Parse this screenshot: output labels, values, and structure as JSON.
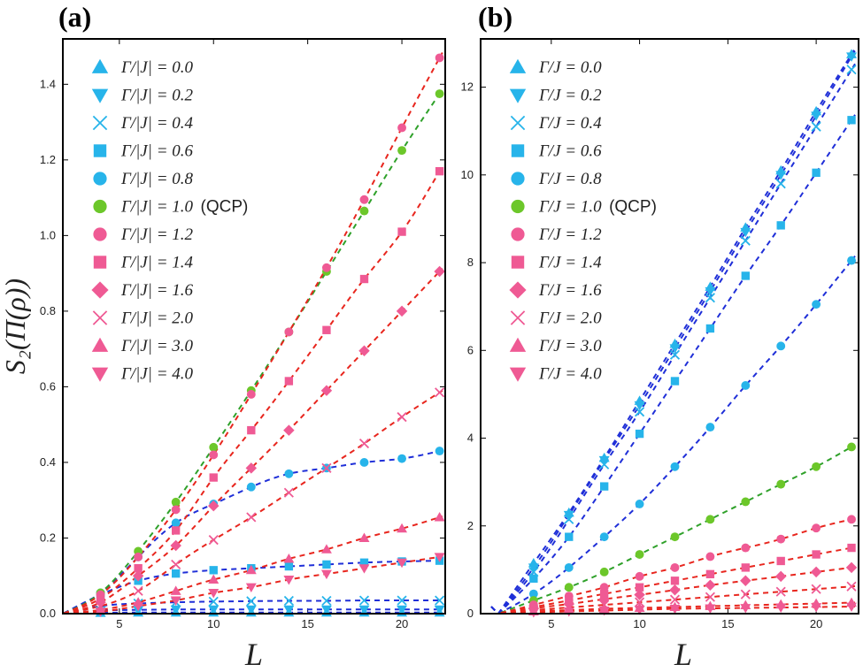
{
  "figure": {
    "ylabel": "S₂(Π(ρ))",
    "xlabel": "L"
  },
  "colors": {
    "cyan": "#27b4ea",
    "green": "#6cc72a",
    "pink": "#ef5a94",
    "blue_fit": "#1f2fd8",
    "green_fit": "#2fa12a",
    "red_fit": "#e8261e"
  },
  "chart_data": [
    {
      "panel": "(a)",
      "type": "scatter",
      "xlabel": "L",
      "ylabel": "S₂(Π(ρ))",
      "xlim": [
        2,
        22.3
      ],
      "ylim": [
        0,
        1.52
      ],
      "xticks": [
        5,
        10,
        15,
        20
      ],
      "yticks": [
        0.0,
        0.2,
        0.4,
        0.6,
        0.8,
        1.0,
        1.2,
        1.4
      ],
      "ytick_labels": [
        "0.0",
        "0.2",
        "0.4",
        "0.6",
        "0.8",
        "1.0",
        "1.2",
        "1.4"
      ],
      "x": [
        4,
        6,
        8,
        10,
        12,
        14,
        16,
        18,
        20,
        22
      ],
      "series": [
        {
          "legend": "Γ/|J| = 0.0",
          "marker": "triangle-up",
          "color": "cyan",
          "fit": "blue_fit",
          "values": [
            0.002,
            0.003,
            0.003,
            0.003,
            0.003,
            0.003,
            0.003,
            0.003,
            0.003,
            0.003
          ]
        },
        {
          "legend": "Γ/|J| = 0.2",
          "marker": "triangle-down",
          "color": "cyan",
          "fit": "blue_fit",
          "values": [
            0.008,
            0.01,
            0.011,
            0.011,
            0.011,
            0.011,
            0.011,
            0.011,
            0.011,
            0.011
          ]
        },
        {
          "legend": "Γ/|J| = 0.4",
          "marker": "cross",
          "color": "cyan",
          "fit": "blue_fit",
          "values": [
            0.02,
            0.027,
            0.03,
            0.032,
            0.033,
            0.034,
            0.034,
            0.035,
            0.035,
            0.035
          ]
        },
        {
          "legend": "Γ/|J| = 0.6",
          "marker": "square",
          "color": "cyan",
          "fit": "blue_fit",
          "values": [
            0.05,
            0.087,
            0.106,
            0.115,
            0.12,
            0.125,
            0.13,
            0.135,
            0.138,
            0.14
          ]
        },
        {
          "legend": "Γ/|J| = 0.8",
          "marker": "circle",
          "color": "cyan",
          "fit": "blue_fit",
          "values": [
            0.055,
            0.15,
            0.24,
            0.29,
            0.335,
            0.37,
            0.385,
            0.4,
            0.41,
            0.43
          ]
        },
        {
          "legend": "Γ/|J| = 1.0",
          "note": "(QCP)",
          "marker": "circle",
          "color": "green",
          "fit": "green_fit",
          "values": [
            0.055,
            0.165,
            0.295,
            0.44,
            0.59,
            0.745,
            0.905,
            1.065,
            1.225,
            1.375
          ]
        },
        {
          "legend": "Γ/|J| = 1.2",
          "marker": "circle",
          "color": "pink",
          "fit": "red_fit",
          "values": [
            0.05,
            0.15,
            0.275,
            0.42,
            0.58,
            0.745,
            0.915,
            1.095,
            1.285,
            1.47
          ]
        },
        {
          "legend": "Γ/|J| = 1.4",
          "marker": "square",
          "color": "pink",
          "fit": "red_fit",
          "values": [
            0.04,
            0.12,
            0.22,
            0.36,
            0.485,
            0.615,
            0.75,
            0.885,
            1.01,
            1.17
          ]
        },
        {
          "legend": "Γ/|J| = 1.6",
          "marker": "diamond",
          "color": "pink",
          "fit": "red_fit",
          "values": [
            0.03,
            0.1,
            0.18,
            0.285,
            0.385,
            0.485,
            0.59,
            0.695,
            0.8,
            0.905
          ]
        },
        {
          "legend": "Γ/|J| = 2.0",
          "marker": "cross",
          "color": "pink",
          "fit": "red_fit",
          "values": [
            0.02,
            0.06,
            0.13,
            0.195,
            0.255,
            0.32,
            0.385,
            0.45,
            0.52,
            0.585
          ]
        },
        {
          "legend": "Γ/|J| = 3.0",
          "marker": "triangle-up",
          "color": "pink",
          "fit": "red_fit",
          "values": [
            0.01,
            0.03,
            0.06,
            0.09,
            0.115,
            0.145,
            0.17,
            0.2,
            0.225,
            0.255
          ]
        },
        {
          "legend": "Γ/|J| = 4.0",
          "marker": "triangle-down",
          "color": "pink",
          "fit": "red_fit",
          "values": [
            0.005,
            0.02,
            0.035,
            0.055,
            0.07,
            0.09,
            0.105,
            0.12,
            0.135,
            0.15
          ]
        }
      ]
    },
    {
      "panel": "(b)",
      "type": "scatter",
      "xlabel": "L",
      "ylabel": "",
      "xlim": [
        1,
        22.4
      ],
      "ylim": [
        0,
        13.1
      ],
      "xticks": [
        5,
        10,
        15,
        20
      ],
      "yticks": [
        0,
        2,
        4,
        6,
        8,
        10,
        12
      ],
      "ytick_labels": [
        "0",
        "2",
        "4",
        "6",
        "8",
        "10",
        "12"
      ],
      "x": [
        4,
        6,
        8,
        10,
        12,
        14,
        16,
        18,
        20,
        22
      ],
      "series": [
        {
          "legend": "Γ/J = 0.0",
          "marker": "triangle-up",
          "color": "cyan",
          "fit": "blue_fit",
          "values": [
            1.15,
            2.3,
            3.55,
            4.85,
            6.15,
            7.45,
            8.8,
            10.1,
            11.45,
            12.75
          ]
        },
        {
          "legend": "Γ/J = 0.2",
          "marker": "triangle-down",
          "color": "cyan",
          "fit": "blue_fit",
          "values": [
            1.05,
            2.25,
            3.5,
            4.75,
            6.05,
            7.35,
            8.7,
            10.0,
            11.35,
            12.7
          ]
        },
        {
          "legend": "Γ/J = 0.4",
          "marker": "cross",
          "color": "cyan",
          "fit": "blue_fit",
          "values": [
            0.95,
            2.15,
            3.4,
            4.6,
            5.9,
            7.2,
            8.5,
            9.8,
            11.1,
            12.4
          ]
        },
        {
          "legend": "Γ/J = 0.6",
          "marker": "square",
          "color": "cyan",
          "fit": "blue_fit",
          "values": [
            0.8,
            1.75,
            2.9,
            4.1,
            5.3,
            6.5,
            7.7,
            8.85,
            10.05,
            11.25
          ]
        },
        {
          "legend": "Γ/J = 0.8",
          "marker": "circle",
          "color": "cyan",
          "fit": "blue_fit",
          "values": [
            0.45,
            1.05,
            1.75,
            2.5,
            3.35,
            4.25,
            5.2,
            6.1,
            7.05,
            8.05
          ]
        },
        {
          "legend": "Γ/J = 1.0",
          "note": "(QCP)",
          "marker": "circle",
          "color": "green",
          "fit": "green_fit",
          "values": [
            0.3,
            0.6,
            0.95,
            1.35,
            1.75,
            2.15,
            2.55,
            2.95,
            3.35,
            3.8
          ]
        },
        {
          "legend": "Γ/J = 1.2",
          "marker": "circle",
          "color": "pink",
          "fit": "red_fit",
          "values": [
            0.2,
            0.4,
            0.6,
            0.85,
            1.05,
            1.3,
            1.5,
            1.7,
            1.95,
            2.15
          ]
        },
        {
          "legend": "Γ/J = 1.4",
          "marker": "square",
          "color": "pink",
          "fit": "red_fit",
          "values": [
            0.15,
            0.3,
            0.45,
            0.6,
            0.75,
            0.9,
            1.05,
            1.2,
            1.35,
            1.5
          ]
        },
        {
          "legend": "Γ/J = 1.6",
          "marker": "diamond",
          "color": "pink",
          "fit": "red_fit",
          "values": [
            0.12,
            0.22,
            0.33,
            0.43,
            0.54,
            0.65,
            0.75,
            0.85,
            0.95,
            1.05
          ]
        },
        {
          "legend": "Γ/J = 2.0",
          "marker": "cross",
          "color": "pink",
          "fit": "red_fit",
          "values": [
            0.08,
            0.14,
            0.2,
            0.26,
            0.32,
            0.38,
            0.44,
            0.5,
            0.56,
            0.62
          ]
        },
        {
          "legend": "Γ/J = 3.0",
          "marker": "triangle-up",
          "color": "pink",
          "fit": "red_fit",
          "values": [
            0.05,
            0.08,
            0.11,
            0.13,
            0.15,
            0.17,
            0.19,
            0.21,
            0.23,
            0.25
          ]
        },
        {
          "legend": "Γ/J = 4.0",
          "marker": "triangle-down",
          "color": "pink",
          "fit": "red_fit",
          "values": [
            0.03,
            0.05,
            0.07,
            0.09,
            0.11,
            0.12,
            0.13,
            0.14,
            0.15,
            0.16
          ]
        }
      ]
    }
  ]
}
